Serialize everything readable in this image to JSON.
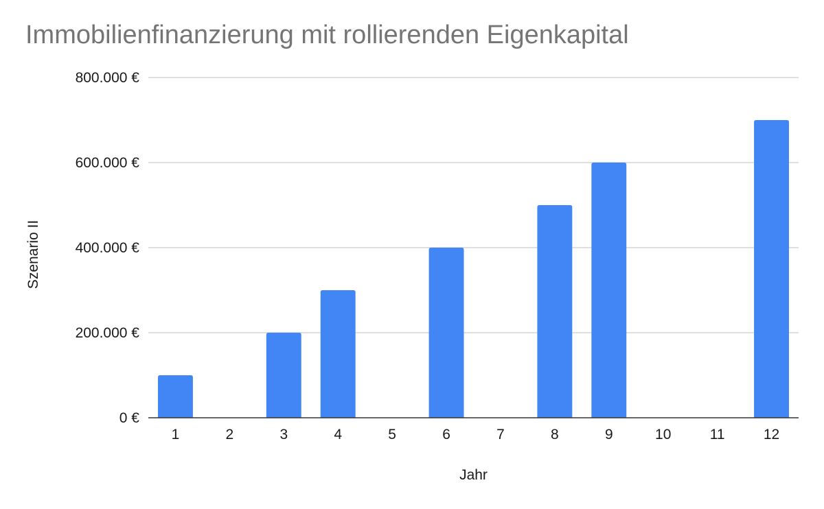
{
  "chart_data": {
    "type": "bar",
    "title": "Immobilienfinanzierung mit rollierenden Eigenkapital",
    "xlabel": "Jahr",
    "ylabel": "Szenario II",
    "categories": [
      "1",
      "2",
      "3",
      "4",
      "5",
      "6",
      "7",
      "8",
      "9",
      "10",
      "11",
      "12"
    ],
    "values": [
      100000,
      0,
      200000,
      300000,
      0,
      400000,
      0,
      500000,
      600000,
      0,
      0,
      700000
    ],
    "ylim": [
      0,
      800000
    ],
    "yticks": [
      0,
      200000,
      400000,
      600000,
      800000
    ],
    "ytick_labels": [
      "0 €",
      "200.000 €",
      "400.000 €",
      "600.000 €",
      "800.000 €"
    ],
    "bar_color": "#4285f4",
    "grid": true,
    "legend": "none"
  }
}
